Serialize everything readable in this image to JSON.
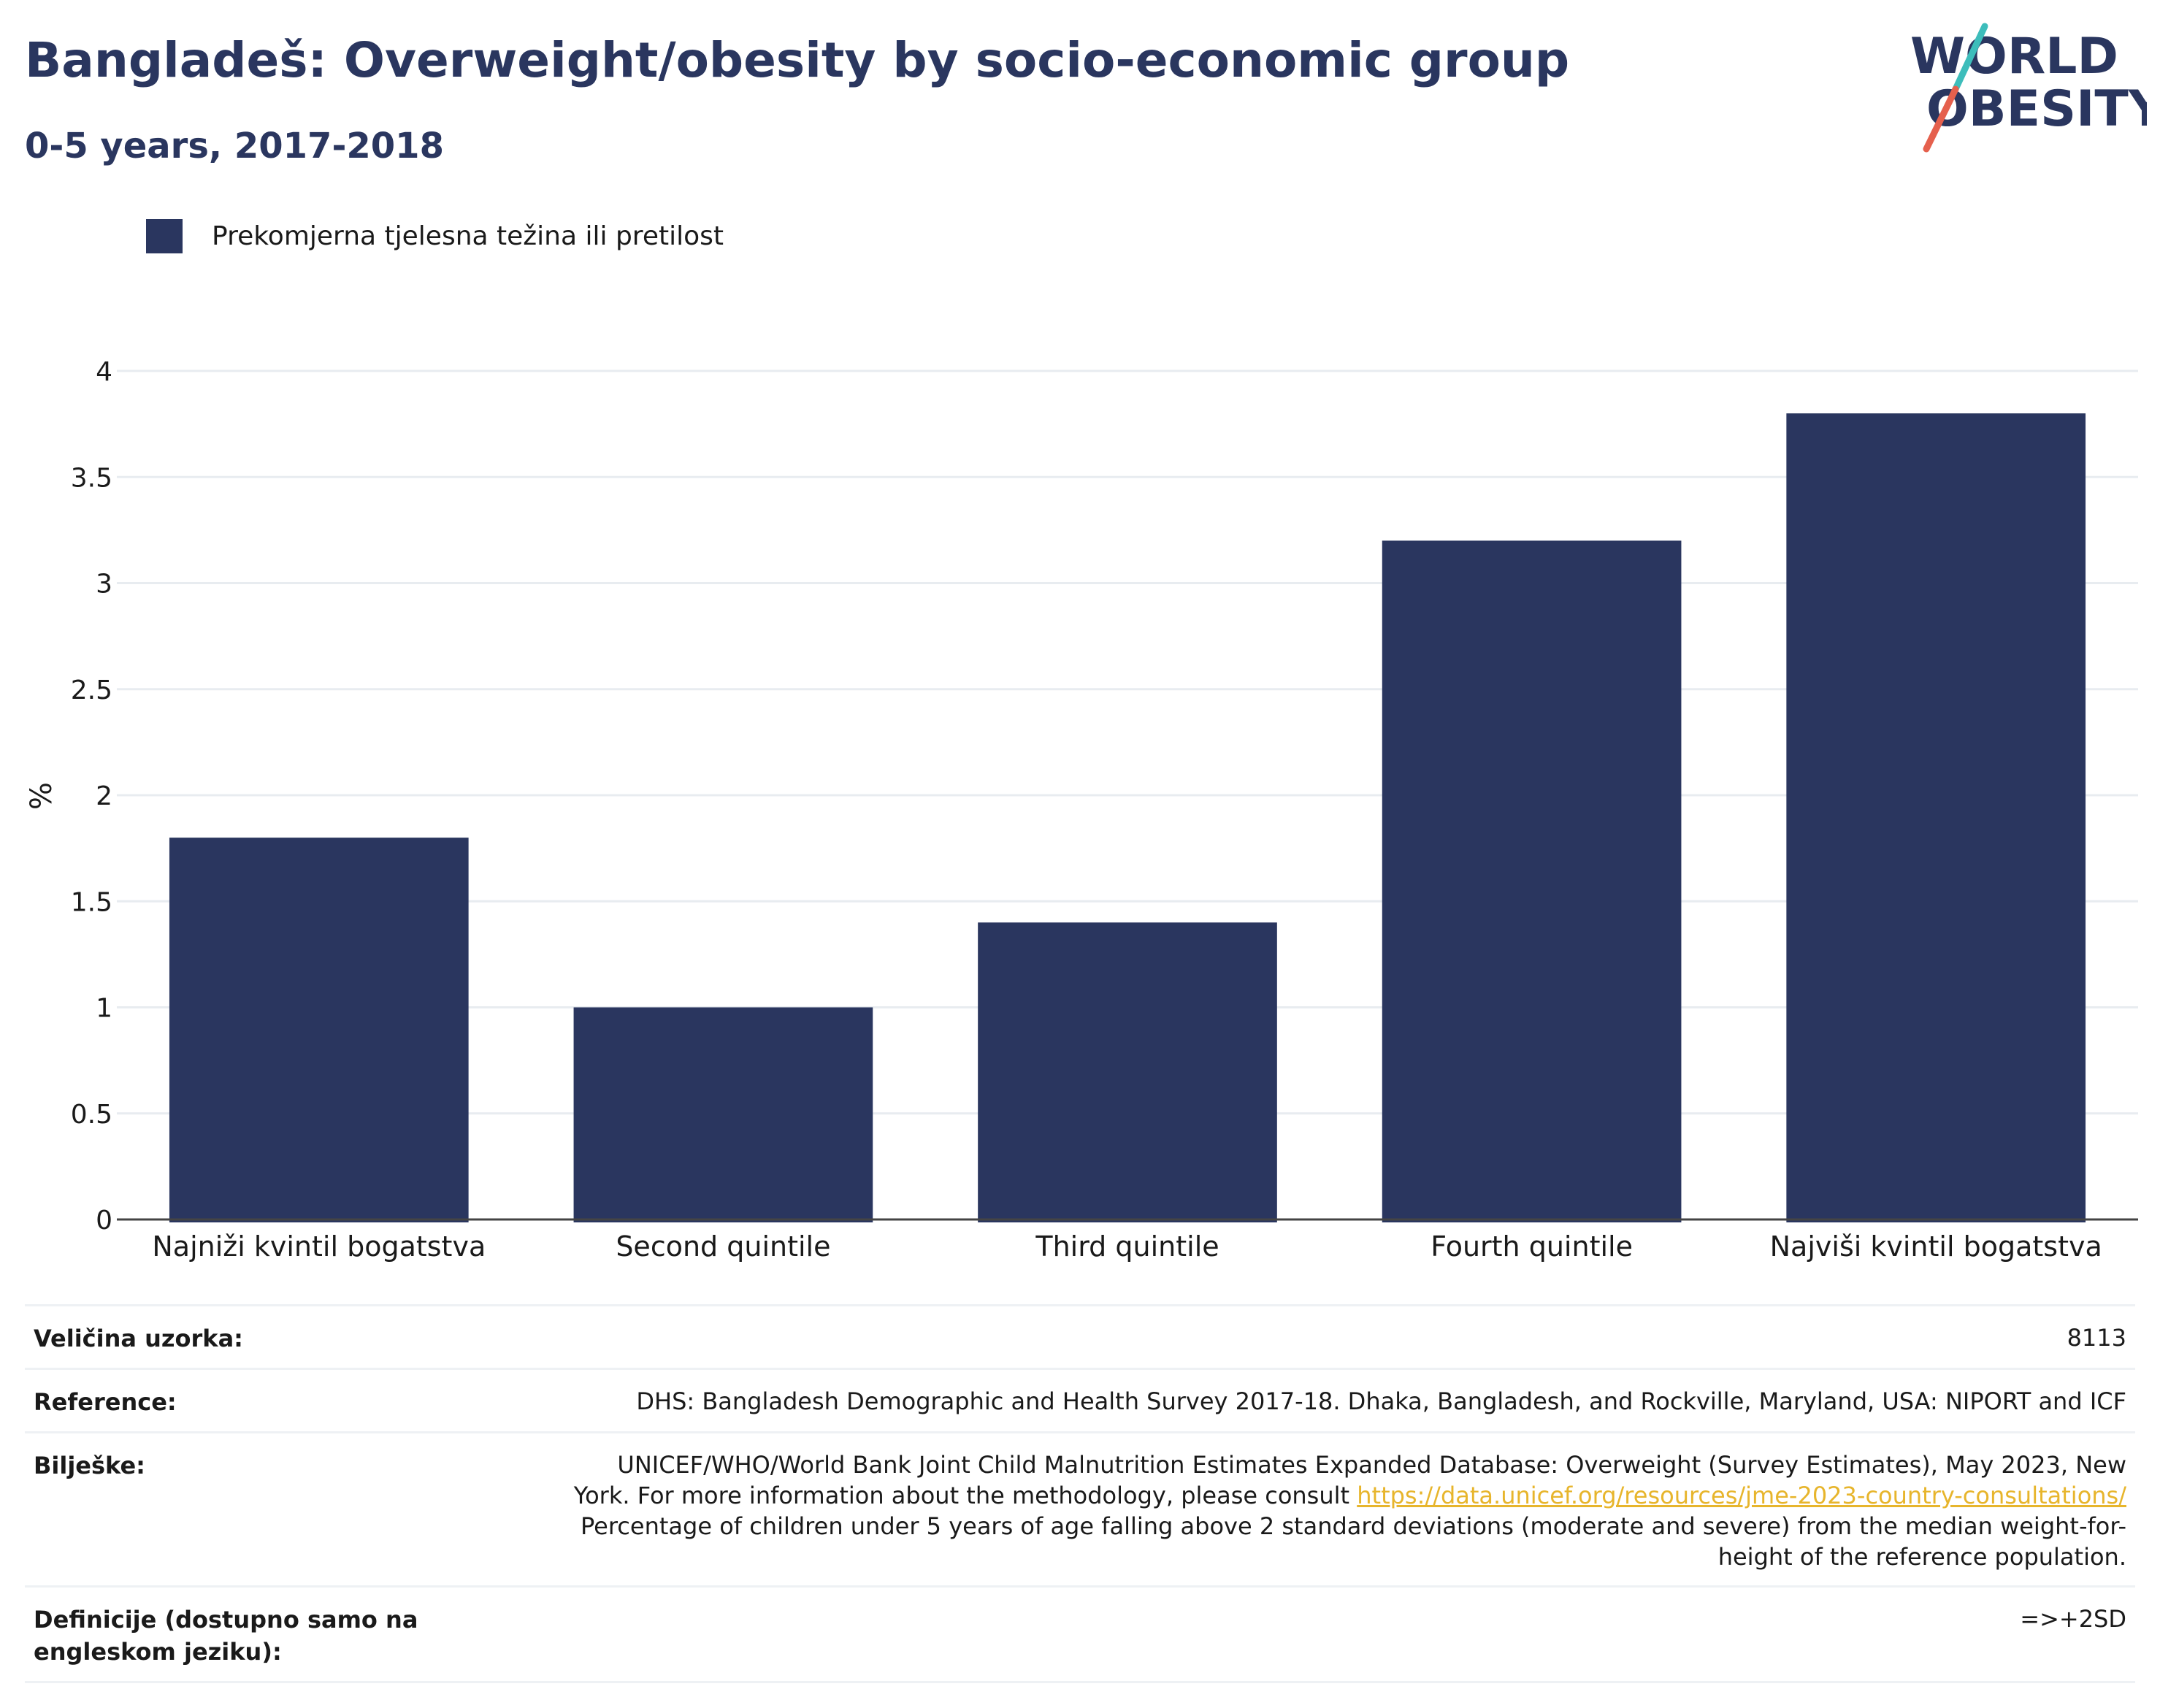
{
  "header": {
    "title": "Bangladeš: Overweight/obesity by socio-economic group",
    "subtitle": "0-5 years, 2017-2018"
  },
  "logo": {
    "line1": "WORLD",
    "line2": "OBESITY",
    "colors": {
      "text": "#2a365f",
      "slash_teal": "#3dbdbb",
      "slash_red": "#e5604d"
    }
  },
  "colors": {
    "bar": "#2a365f",
    "grid": "#e8ecf0",
    "axis": "#444444",
    "link": "#e7b52c"
  },
  "chart_data": {
    "type": "bar",
    "title": "Bangladeš: Overweight/obesity by socio-economic group",
    "subtitle": "0-5 years, 2017-2018",
    "categories": [
      "Najniži kvintil bogatstva",
      "Second quintile",
      "Third quintile",
      "Fourth quintile",
      "Najviši kvintil bogatstva"
    ],
    "series": [
      {
        "name": "Prekomjerna tjelesna težina ili pretilost",
        "values": [
          1.8,
          1.0,
          1.4,
          3.2,
          3.8
        ]
      }
    ],
    "xlabel": "",
    "ylabel": "%",
    "ylim": [
      0,
      4
    ],
    "yticks": [
      "0",
      "0.5",
      "1",
      "1.5",
      "2",
      "2.5",
      "3",
      "3.5",
      "4"
    ],
    "grid": true,
    "legend_position": "top-left"
  },
  "meta": {
    "sample_size_label": "Veličina uzorka:",
    "sample_size_value": "8113",
    "reference_label": "Reference:",
    "reference_value": "DHS: Bangladesh Demographic and Health Survey 2017-18. Dhaka, Bangladesh, and Rockville, Maryland, USA: NIPORT and ICF",
    "notes_label": "Bilješke:",
    "notes_line1": "UNICEF/WHO/World Bank Joint Child Malnutrition Estimates Expanded Database: Overweight (Survey Estimates), May 2023, New",
    "notes_line2_text": "York. For more information about the methodology, please consult ",
    "notes_link": "https://data.unicef.org/resources/jme-2023-country-consultations/",
    "notes_line3": "Percentage of children under 5 years of age falling above 2 standard deviations (moderate and severe) from the median weight-for-",
    "notes_line4": "height of the reference population.",
    "definitions_label": "Definicije (dostupno samo na engleskom jeziku):",
    "definitions_value": "=>+2SD"
  }
}
